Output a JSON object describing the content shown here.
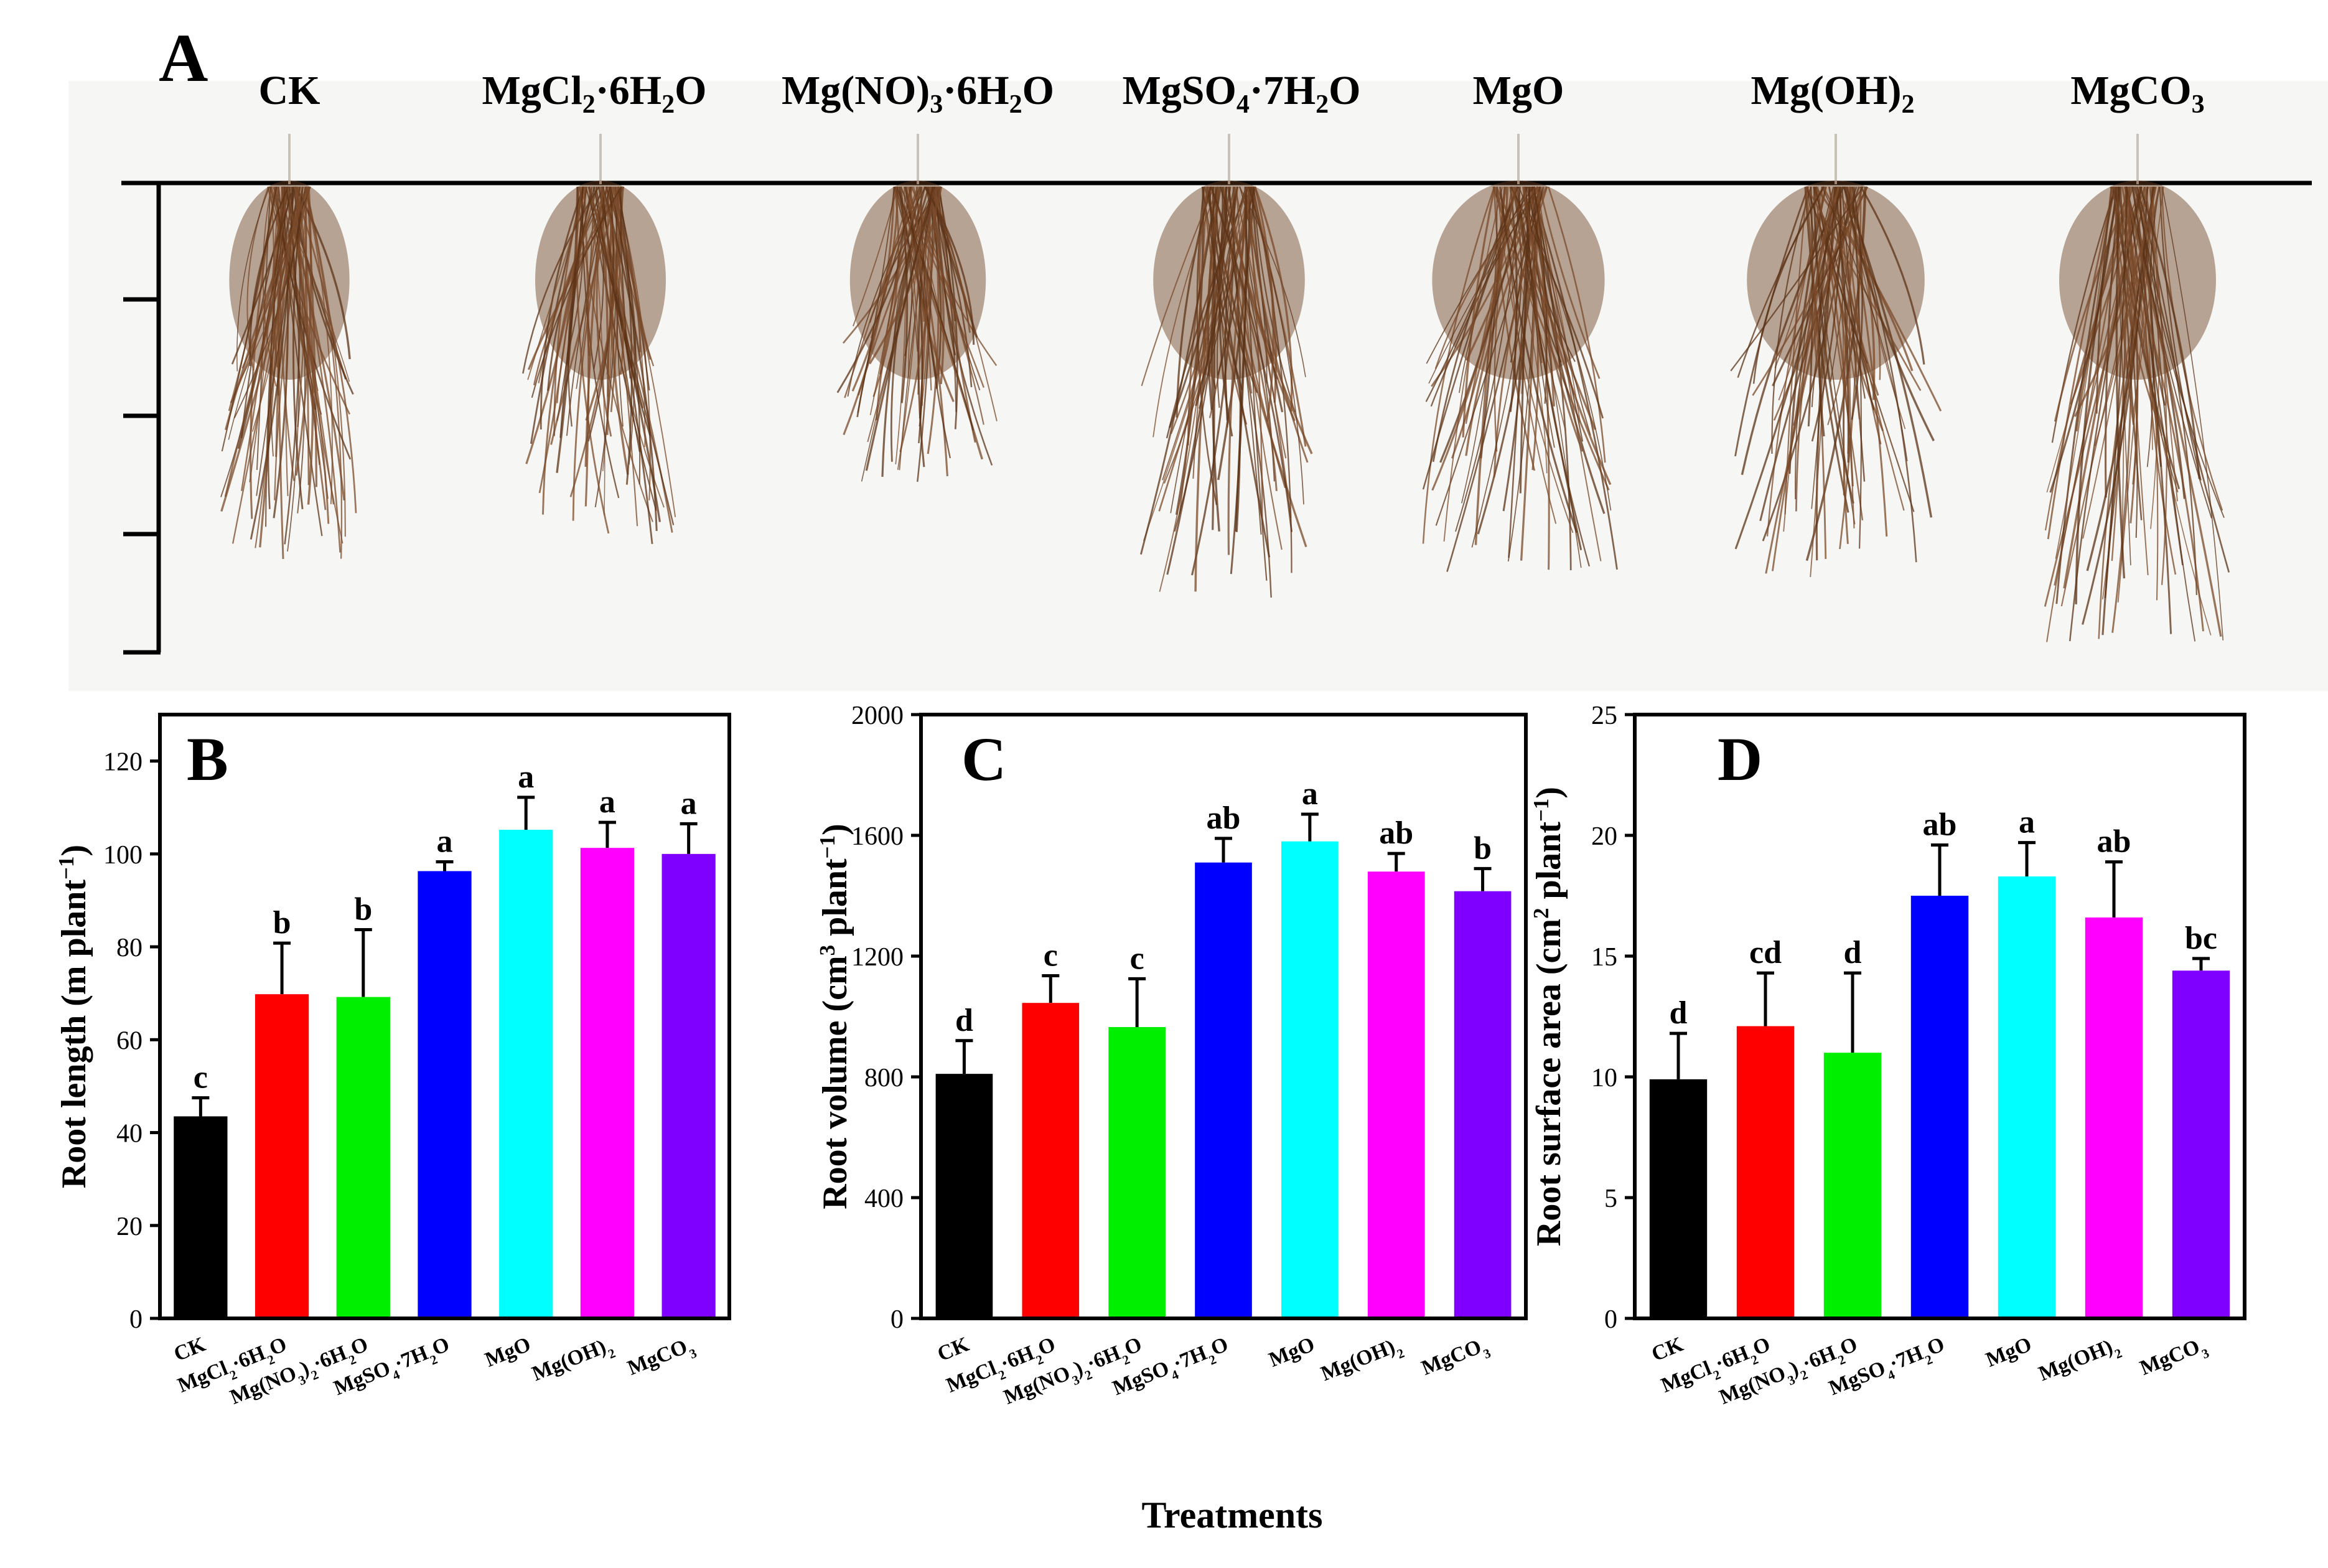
{
  "panel_a": {
    "letter": "A",
    "labels": [
      {
        "parts": [
          {
            "t": "CK"
          }
        ]
      },
      {
        "parts": [
          {
            "t": "MgCl"
          },
          {
            "t": "2",
            "s": true
          },
          {
            "t": "·6H"
          },
          {
            "t": "2",
            "s": true
          },
          {
            "t": "O"
          }
        ]
      },
      {
        "parts": [
          {
            "t": "Mg(NO)"
          },
          {
            "t": "3",
            "s": true
          },
          {
            "t": "·6H"
          },
          {
            "t": "2",
            "s": true
          },
          {
            "t": "O"
          }
        ]
      },
      {
        "parts": [
          {
            "t": "MgSO"
          },
          {
            "t": "4",
            "s": true
          },
          {
            "t": "·7H"
          },
          {
            "t": "2",
            "s": true
          },
          {
            "t": "O"
          }
        ]
      },
      {
        "parts": [
          {
            "t": "MgO"
          }
        ]
      },
      {
        "parts": [
          {
            "t": "Mg(OH)"
          },
          {
            "t": "2",
            "s": true
          }
        ]
      },
      {
        "parts": [
          {
            "t": "MgCO"
          },
          {
            "t": "3",
            "s": true
          }
        ]
      }
    ]
  },
  "colors": [
    "#000000",
    "#ff0000",
    "#00ee00",
    "#0000ff",
    "#00ffff",
    "#ff00ff",
    "#8000ff"
  ],
  "x_axis_title": "Treatments",
  "chart_data": [
    {
      "type": "bar",
      "panel": "B",
      "categories": [
        "CK",
        "MgCl2·6H2O",
        "Mg(NO3)2·6H2O",
        "MgSO4·7H2O",
        "MgO",
        "Mg(OH)2",
        "MgCO3"
      ],
      "category_labels": [
        [
          {
            "t": "CK"
          }
        ],
        [
          {
            "t": "MgCl"
          },
          {
            "t": "2",
            "s": true
          },
          {
            "t": "·6H"
          },
          {
            "t": "2",
            "s": true
          },
          {
            "t": "O"
          }
        ],
        [
          {
            "t": "Mg(NO"
          },
          {
            "t": "3",
            "s": true
          },
          {
            "t": ")"
          },
          {
            "t": "2",
            "s": true
          },
          {
            "t": "·6H"
          },
          {
            "t": "2",
            "s": true
          },
          {
            "t": "O"
          }
        ],
        [
          {
            "t": "MgSO"
          },
          {
            "t": "4",
            "s": true
          },
          {
            "t": "·7H"
          },
          {
            "t": "2",
            "s": true
          },
          {
            "t": "O"
          }
        ],
        [
          {
            "t": "MgO"
          }
        ],
        [
          {
            "t": "Mg(OH)"
          },
          {
            "t": "2",
            "s": true
          }
        ],
        [
          {
            "t": "MgCO"
          },
          {
            "t": "3",
            "s": true
          }
        ]
      ],
      "values": [
        43.5,
        69.8,
        69.2,
        96.3,
        105.2,
        101.3,
        100.0
      ],
      "errors": [
        4.0,
        11.0,
        14.5,
        2.0,
        7.0,
        5.5,
        6.5
      ],
      "letters": [
        "c",
        "b",
        "b",
        "a",
        "a",
        "a",
        "a"
      ],
      "ylabel": [
        {
          "t": "Root length (m plant"
        },
        {
          "t": "−1",
          "u": true
        },
        {
          "t": ")"
        }
      ],
      "ylim": [
        0,
        130
      ],
      "yticks": [
        0,
        20,
        40,
        60,
        80,
        100,
        120
      ]
    },
    {
      "type": "bar",
      "panel": "C",
      "categories": [
        "CK",
        "MgCl2·6H2O",
        "Mg(NO3)2·6H2O",
        "MgSO4·7H2O",
        "MgO",
        "Mg(OH)2",
        "MgCO3"
      ],
      "category_labels": [
        [
          {
            "t": "CK"
          }
        ],
        [
          {
            "t": "MgCl"
          },
          {
            "t": "2",
            "s": true
          },
          {
            "t": "·6H"
          },
          {
            "t": "2",
            "s": true
          },
          {
            "t": "O"
          }
        ],
        [
          {
            "t": "Mg(NO"
          },
          {
            "t": "3",
            "s": true
          },
          {
            "t": ")"
          },
          {
            "t": "2",
            "s": true
          },
          {
            "t": "·6H"
          },
          {
            "t": "2",
            "s": true
          },
          {
            "t": "O"
          }
        ],
        [
          {
            "t": "MgSO"
          },
          {
            "t": "4",
            "s": true
          },
          {
            "t": "·7H"
          },
          {
            "t": "2",
            "s": true
          },
          {
            "t": "O"
          }
        ],
        [
          {
            "t": "MgO"
          }
        ],
        [
          {
            "t": "Mg(OH)"
          },
          {
            "t": "2",
            "s": true
          }
        ],
        [
          {
            "t": "MgCO"
          },
          {
            "t": "3",
            "s": true
          }
        ]
      ],
      "values": [
        810,
        1045,
        965,
        1510,
        1580,
        1480,
        1415
      ],
      "errors": [
        110,
        90,
        160,
        80,
        90,
        60,
        75
      ],
      "letters": [
        "d",
        "c",
        "c",
        "ab",
        "a",
        "ab",
        "b"
      ],
      "ylabel": [
        {
          "t": "Root volume (cm"
        },
        {
          "t": "3",
          "u": true
        },
        {
          "t": " plant"
        },
        {
          "t": "−1",
          "u": true
        },
        {
          "t": ")"
        }
      ],
      "ylim": [
        0,
        2000
      ],
      "yticks": [
        0,
        400,
        800,
        1200,
        1600,
        2000
      ]
    },
    {
      "type": "bar",
      "panel": "D",
      "categories": [
        "CK",
        "MgCl2·6H2O",
        "Mg(NO3)2·6H2O",
        "MgSO4·7H2O",
        "MgO",
        "Mg(OH)2",
        "MgCO3"
      ],
      "category_labels": [
        [
          {
            "t": "CK"
          }
        ],
        [
          {
            "t": "MgCl"
          },
          {
            "t": "2",
            "s": true
          },
          {
            "t": "·6H"
          },
          {
            "t": "2",
            "s": true
          },
          {
            "t": "O"
          }
        ],
        [
          {
            "t": "Mg(NO"
          },
          {
            "t": "3",
            "s": true
          },
          {
            "t": ")"
          },
          {
            "t": "2",
            "s": true
          },
          {
            "t": "·6H"
          },
          {
            "t": "2",
            "s": true
          },
          {
            "t": "O"
          }
        ],
        [
          {
            "t": "MgSO"
          },
          {
            "t": "4",
            "s": true
          },
          {
            "t": "·7H"
          },
          {
            "t": "2",
            "s": true
          },
          {
            "t": "O"
          }
        ],
        [
          {
            "t": "MgO"
          }
        ],
        [
          {
            "t": "Mg(OH)"
          },
          {
            "t": "2",
            "s": true
          }
        ],
        [
          {
            "t": "MgCO"
          },
          {
            "t": "3",
            "s": true
          }
        ]
      ],
      "values": [
        9.9,
        12.1,
        11.0,
        17.5,
        18.3,
        16.6,
        14.4
      ],
      "errors": [
        1.9,
        2.2,
        3.3,
        2.1,
        1.4,
        2.3,
        0.5
      ],
      "letters": [
        "d",
        "cd",
        "d",
        "ab",
        "a",
        "ab",
        "bc"
      ],
      "ylabel": [
        {
          "t": "Root surface area (cm"
        },
        {
          "t": "2",
          "u": true
        },
        {
          "t": " plant"
        },
        {
          "t": "−1",
          "u": true
        },
        {
          "t": ")"
        }
      ],
      "ylim": [
        0,
        25
      ],
      "yticks": [
        0,
        5,
        10,
        15,
        20,
        25
      ]
    }
  ]
}
